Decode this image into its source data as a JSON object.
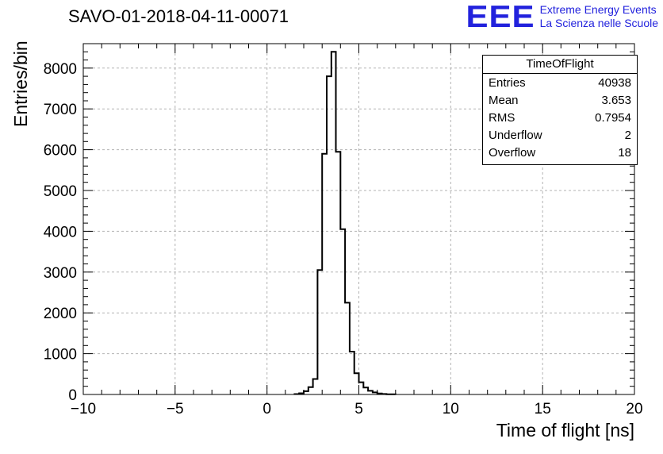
{
  "header": {
    "title": "SAVO-01-2018-04-11-00071"
  },
  "logo": {
    "text": "EEE",
    "subtitle1": "Extreme Energy Events",
    "subtitle2": "La Scienza nelle Scuole",
    "color": "#2222dd"
  },
  "stats": {
    "title": "TimeOfFlight",
    "rows": [
      {
        "label": "Entries",
        "value": "40938"
      },
      {
        "label": "Mean",
        "value": "3.653"
      },
      {
        "label": "RMS",
        "value": "0.7954"
      },
      {
        "label": "Underflow",
        "value": "2"
      },
      {
        "label": "Overflow",
        "value": "18"
      }
    ]
  },
  "chart_data": {
    "type": "bar",
    "subtype": "step-histogram",
    "title": "SAVO-01-2018-04-11-00071",
    "xlabel": "Time of flight [ns]",
    "ylabel": "Entries/bin",
    "xlim": [
      -10,
      20
    ],
    "ylim": [
      0,
      8600
    ],
    "grid": true,
    "x_ticks": [
      -10,
      -5,
      0,
      5,
      10,
      15,
      20
    ],
    "x_tick_labels": [
      "−10",
      "−5",
      "0",
      "5",
      "10",
      "15",
      "20"
    ],
    "x_minor_step": 1,
    "y_ticks": [
      0,
      1000,
      2000,
      3000,
      4000,
      5000,
      6000,
      7000,
      8000
    ],
    "y_tick_labels": [
      "0",
      "1000",
      "2000",
      "3000",
      "4000",
      "5000",
      "6000",
      "7000",
      "8000"
    ],
    "y_minor_step": 200,
    "bins": {
      "start": 1.5,
      "width": 0.25,
      "counts": [
        10,
        30,
        80,
        180,
        380,
        3050,
        5900,
        7800,
        8400,
        5950,
        4050,
        2250,
        1050,
        520,
        300,
        170,
        90,
        50,
        25,
        12,
        6,
        3
      ]
    },
    "stats_box": {
      "title": "TimeOfFlight",
      "entries": 40938,
      "mean": 3.653,
      "rms": 0.7954,
      "underflow": 2,
      "overflow": 18
    }
  }
}
